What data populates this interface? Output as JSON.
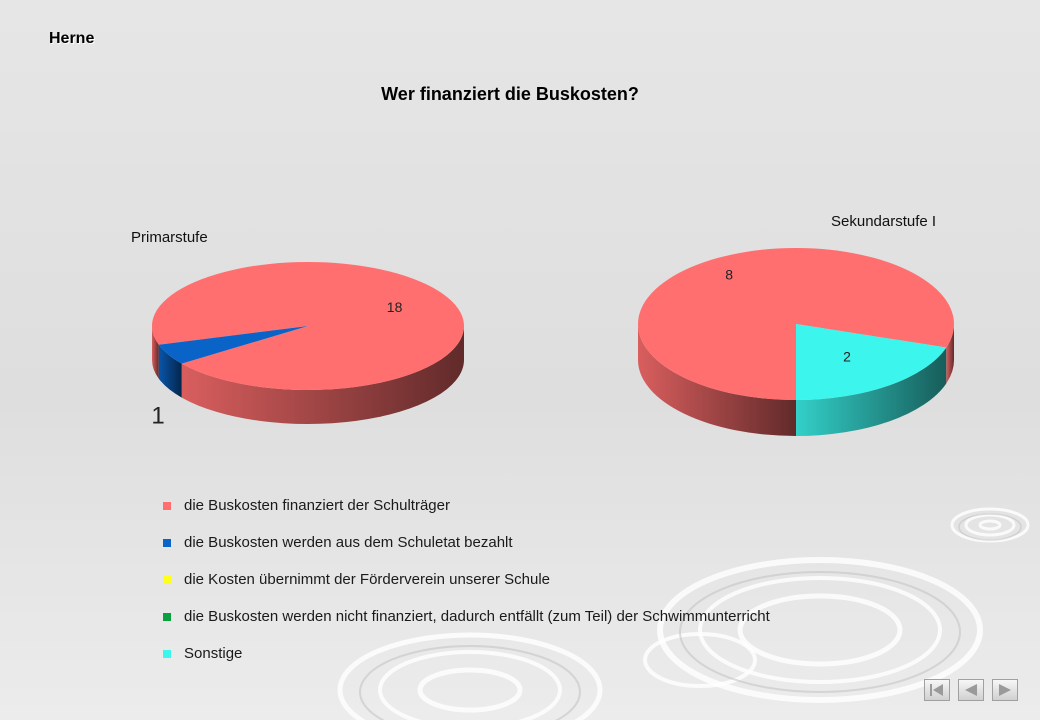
{
  "header": {
    "region": "Herne"
  },
  "main_title": "Wer finanziert die Buskosten?",
  "chart_data": {
    "type": "pie",
    "title": "Wer finanziert die Buskosten?",
    "legend": {
      "placement": "bottom",
      "entries": [
        {
          "label": "die Buskosten finanziert der Schulträger",
          "color": "#ff6f6f"
        },
        {
          "label": "die Buskosten werden aus dem Schuletat bezahlt",
          "color": "#0a64c8"
        },
        {
          "label": "die Kosten übernimmt der Förderverein unserer Schule",
          "color": "#ffff1e"
        },
        {
          "label": "die Buskosten werden nicht finanziert, dadurch entfällt (zum Teil) der Schwimmunterricht",
          "color": "#0aa040"
        },
        {
          "label": "Sonstige",
          "color": "#3cf5ec"
        }
      ]
    },
    "pies": [
      {
        "title": "Primarstufe",
        "slices": [
          {
            "category": "die Buskosten finanziert der Schulträger",
            "value": 18,
            "label": "18",
            "color": "#ff6f6f"
          },
          {
            "category": "die Buskosten werden aus dem Schuletat bezahlt",
            "value": 1,
            "label": "1",
            "color": "#0a64c8"
          }
        ]
      },
      {
        "title": "Sekundarstufe I",
        "slices": [
          {
            "category": "die Buskosten finanziert der Schulträger",
            "value": 8,
            "label": "8",
            "color": "#ff6f6f"
          },
          {
            "category": "Sonstige",
            "value": 2,
            "label": "2",
            "color": "#3cf5ec"
          }
        ]
      }
    ]
  },
  "navigation": {
    "icons": [
      "first-page-icon",
      "previous-page-icon",
      "next-page-icon"
    ]
  }
}
